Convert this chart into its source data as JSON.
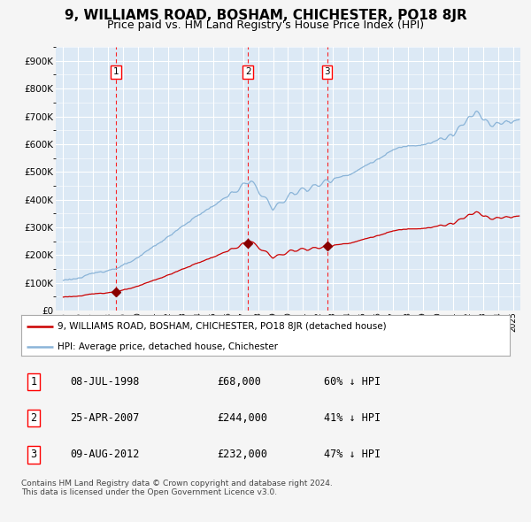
{
  "title": "9, WILLIAMS ROAD, BOSHAM, CHICHESTER, PO18 8JR",
  "subtitle": "Price paid vs. HM Land Registry's House Price Index (HPI)",
  "title_fontsize": 11,
  "subtitle_fontsize": 9,
  "bg_color": "#dce9f5",
  "grid_color": "#ffffff",
  "hpi_color": "#8ab4d8",
  "price_color": "#cc0000",
  "marker_color": "#880000",
  "purchases": [
    {
      "date_num": 1998.52,
      "price": 68000,
      "label": "1"
    },
    {
      "date_num": 2007.32,
      "price": 244000,
      "label": "2"
    },
    {
      "date_num": 2012.6,
      "price": 232000,
      "label": "3"
    }
  ],
  "footer_text": "Contains HM Land Registry data © Crown copyright and database right 2024.\nThis data is licensed under the Open Government Licence v3.0.",
  "legend_entries": [
    "9, WILLIAMS ROAD, BOSHAM, CHICHESTER, PO18 8JR (detached house)",
    "HPI: Average price, detached house, Chichester"
  ],
  "table": [
    {
      "num": "1",
      "date": "08-JUL-1998",
      "price": "£68,000",
      "hpi": "60% ↓ HPI"
    },
    {
      "num": "2",
      "date": "25-APR-2007",
      "price": "£244,000",
      "hpi": "41% ↓ HPI"
    },
    {
      "num": "3",
      "date": "09-AUG-2012",
      "price": "£232,000",
      "hpi": "47% ↓ HPI"
    }
  ],
  "ylim": [
    0,
    950000
  ],
  "xlim": [
    1994.5,
    2025.5
  ]
}
